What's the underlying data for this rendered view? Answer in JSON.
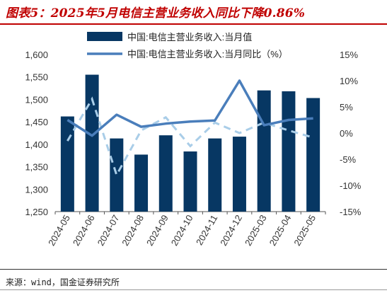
{
  "title": "图表5：2025年5月电信主营业务收入同比下降0.86%",
  "source": "来源：wind，国金证券研究所",
  "colors": {
    "bar": "#073763",
    "line": "#4a7ebb",
    "dashed": "#a9cde8",
    "title": "#c00000"
  },
  "chart_data": {
    "type": "bar",
    "categories": [
      "2024-05",
      "2024-06",
      "2024-07",
      "2024-08",
      "2024-09",
      "2024-10",
      "2024-11",
      "2024-12",
      "2025-03",
      "2025-04",
      "2025-05"
    ],
    "series": [
      {
        "name": "中国:电信主营业务收入:当月值",
        "type": "bar",
        "axis": "left",
        "values": [
          1462,
          1555,
          1413,
          1377,
          1420,
          1384,
          1413,
          1417,
          1520,
          1518,
          1503
        ]
      },
      {
        "name": "中国:电信主营业务收入:当月同比（%）",
        "type": "line",
        "axis": "right",
        "values": [
          2.5,
          -0.5,
          3.5,
          1.2,
          1.8,
          2.2,
          2.4,
          10.0,
          1.5,
          2.5,
          2.8
        ]
      },
      {
        "name": "",
        "type": "dashed-line",
        "axis": "right",
        "values": [
          -1.5,
          6.5,
          -8.0,
          0.5,
          3.0,
          -2.5,
          2.0,
          0.0,
          2.0,
          0.5,
          -0.86
        ]
      }
    ],
    "ylim_left": [
      1250,
      1600
    ],
    "yticks_left": [
      "1,250",
      "1,300",
      "1,350",
      "1,400",
      "1,450",
      "1,500",
      "1,550",
      "1,600"
    ],
    "ylim_right": [
      -15,
      15
    ],
    "yticks_right": [
      "-15%",
      "-10%",
      "-5%",
      "0%",
      "5%",
      "10%",
      "15%"
    ],
    "legend_position": "top-center",
    "grid": false
  }
}
